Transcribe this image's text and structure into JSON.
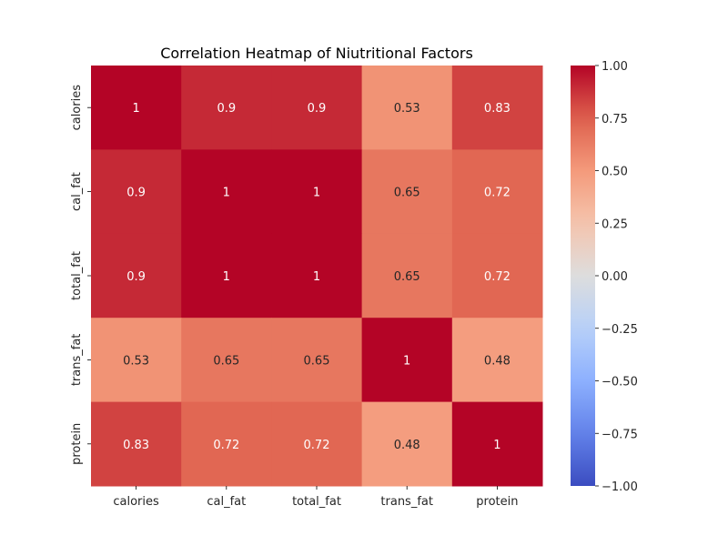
{
  "chart_data": {
    "type": "heatmap",
    "title": "Correlation Heatmap of Niutritional Factors",
    "xlabel": "",
    "ylabel": "",
    "x_categories": [
      "calories",
      "cal_fat",
      "total_fat",
      "trans_fat",
      "protein"
    ],
    "y_categories": [
      "calories",
      "cal_fat",
      "total_fat",
      "trans_fat",
      "protein"
    ],
    "values": [
      [
        1.0,
        0.9,
        0.9,
        0.53,
        0.83
      ],
      [
        0.9,
        1.0,
        1.0,
        0.65,
        0.72
      ],
      [
        0.9,
        1.0,
        1.0,
        0.65,
        0.72
      ],
      [
        0.53,
        0.65,
        0.65,
        1.0,
        0.48
      ],
      [
        0.83,
        0.72,
        0.72,
        0.48,
        1.0
      ]
    ],
    "annotations": [
      [
        "1",
        "0.9",
        "0.9",
        "0.53",
        "0.83"
      ],
      [
        "0.9",
        "1",
        "1",
        "0.65",
        "0.72"
      ],
      [
        "0.9",
        "1",
        "1",
        "0.65",
        "0.72"
      ],
      [
        "0.53",
        "0.65",
        "0.65",
        "1",
        "0.48"
      ],
      [
        "0.83",
        "0.72",
        "0.72",
        "0.48",
        "1"
      ]
    ],
    "colormap": "coolwarm",
    "vmin": -1.0,
    "vmax": 1.0,
    "colorbar_ticks": [
      "1.00",
      "0.75",
      "0.50",
      "0.25",
      "0.00",
      "−0.25",
      "−0.50",
      "−0.75",
      "−1.00"
    ],
    "colorbar_tick_values": [
      1.0,
      0.75,
      0.5,
      0.25,
      0.0,
      -0.25,
      -0.5,
      -0.75,
      -1.0
    ],
    "grid": false
  }
}
